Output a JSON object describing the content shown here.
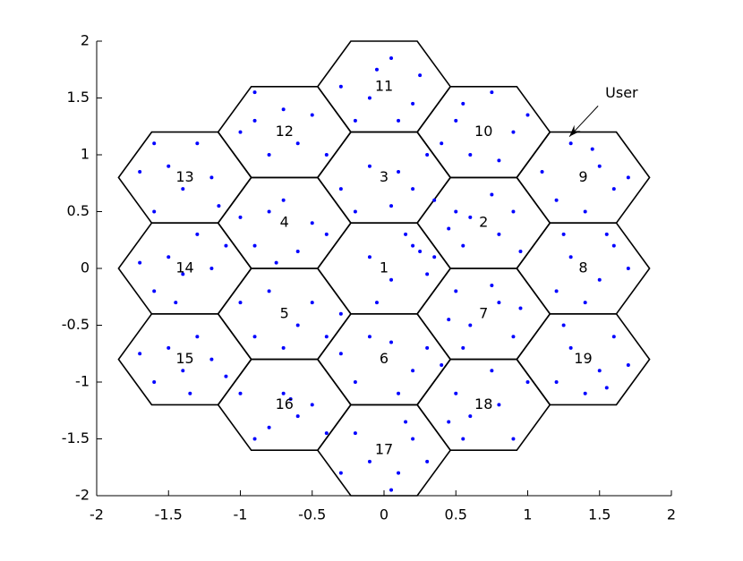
{
  "chart_data": {
    "type": "scatter",
    "xlim": [
      -2,
      2
    ],
    "ylim": [
      -2,
      2
    ],
    "xticks": [
      -2,
      -1.5,
      -1,
      -0.5,
      0,
      0.5,
      1,
      1.5,
      2
    ],
    "yticks": [
      -2,
      -1.5,
      -1,
      -0.5,
      0,
      0.5,
      1,
      1.5,
      2
    ],
    "cell_radius": 0.4619,
    "cells": [
      {
        "label": "1",
        "x": 0,
        "y": 0
      },
      {
        "label": "2",
        "x": 0.693,
        "y": 0.4
      },
      {
        "label": "3",
        "x": 0,
        "y": 0.8
      },
      {
        "label": "4",
        "x": -0.693,
        "y": 0.4
      },
      {
        "label": "5",
        "x": -0.693,
        "y": -0.4
      },
      {
        "label": "6",
        "x": 0,
        "y": -0.8
      },
      {
        "label": "7",
        "x": 0.693,
        "y": -0.4
      },
      {
        "label": "8",
        "x": 1.386,
        "y": 0
      },
      {
        "label": "9",
        "x": 1.386,
        "y": 0.8
      },
      {
        "label": "10",
        "x": 0.693,
        "y": 1.2
      },
      {
        "label": "11",
        "x": 0,
        "y": 1.6
      },
      {
        "label": "12",
        "x": -0.693,
        "y": 1.2
      },
      {
        "label": "13",
        "x": -1.386,
        "y": 0.8
      },
      {
        "label": "14",
        "x": -1.386,
        "y": 0
      },
      {
        "label": "15",
        "x": -1.386,
        "y": -0.8
      },
      {
        "label": "16",
        "x": -0.693,
        "y": -1.2
      },
      {
        "label": "17",
        "x": 0,
        "y": -1.6
      },
      {
        "label": "18",
        "x": 0.693,
        "y": -1.2
      },
      {
        "label": "19",
        "x": 1.386,
        "y": -0.8
      }
    ],
    "annotation": {
      "text": "User",
      "xy": [
        1.29,
        1.16
      ],
      "xytext": [
        1.49,
        1.43
      ]
    },
    "series": [
      {
        "color": "#0000ff",
        "x": [
          0.2,
          0.25,
          0.05,
          -0.1,
          0.3,
          0.15,
          -0.05,
          0.35,
          0.5,
          0.6,
          0.8,
          0.9,
          0.55,
          0.75,
          0.95,
          0.45,
          -0.1,
          0.2,
          0.05,
          -0.3,
          0.3,
          0.1,
          -0.2,
          0.35,
          -0.8,
          -0.7,
          -0.5,
          -0.9,
          -0.6,
          -0.4,
          -0.75,
          -1.0,
          -0.8,
          -0.5,
          -0.6,
          -0.9,
          -0.4,
          -0.7,
          -0.3,
          -1.0,
          -0.1,
          0.2,
          0.3,
          -0.2,
          0.1,
          0.4,
          -0.3,
          0.05,
          0.5,
          0.6,
          0.8,
          0.9,
          0.55,
          0.75,
          0.45,
          0.95,
          1.3,
          1.5,
          1.6,
          1.2,
          1.4,
          1.7,
          1.25,
          1.55,
          1.3,
          1.5,
          1.6,
          1.2,
          1.4,
          1.7,
          1.45,
          1.1,
          0.5,
          0.75,
          0.9,
          0.6,
          0.4,
          0.8,
          0.55,
          1.0,
          -0.1,
          0.05,
          0.2,
          -0.2,
          0.1,
          -0.3,
          0.25,
          -0.05,
          -0.9,
          -0.7,
          -0.5,
          -0.8,
          -0.6,
          -0.4,
          -0.9,
          -1.0,
          -1.6,
          -1.5,
          -1.4,
          -1.2,
          -1.3,
          -1.6,
          -1.7,
          -1.15,
          -1.5,
          -1.4,
          -1.3,
          -1.6,
          -1.2,
          -1.45,
          -1.7,
          -1.1,
          -1.5,
          -1.4,
          -1.3,
          -1.6,
          -1.2,
          -1.7,
          -1.35,
          -1.1,
          -0.7,
          -0.6,
          -0.5,
          -0.8,
          -0.65,
          -0.4,
          -0.9,
          -1.0,
          -0.1,
          0.1,
          0.2,
          -0.2,
          0.05,
          0.3,
          -0.3,
          0.15,
          0.5,
          0.6,
          0.8,
          0.9,
          0.55,
          0.75,
          1.0,
          0.45,
          1.3,
          1.5,
          1.6,
          1.2,
          1.4,
          1.7,
          1.25,
          1.55
        ],
        "y": [
          0.2,
          0.15,
          -0.1,
          0.1,
          -0.05,
          0.3,
          -0.3,
          0.1,
          0.5,
          0.45,
          0.3,
          0.5,
          0.2,
          0.65,
          0.15,
          0.35,
          0.9,
          0.7,
          0.55,
          0.7,
          1.0,
          0.85,
          0.5,
          0.6,
          0.5,
          0.6,
          0.4,
          0.2,
          0.15,
          0.3,
          0.05,
          0.45,
          -0.2,
          -0.3,
          -0.5,
          -0.6,
          -0.6,
          -0.7,
          -0.4,
          -0.3,
          -0.6,
          -0.9,
          -0.7,
          -1.0,
          -1.1,
          -0.85,
          -0.75,
          -0.65,
          -0.2,
          -0.5,
          -0.3,
          -0.6,
          -0.7,
          -0.15,
          -0.45,
          -0.35,
          0.1,
          -0.1,
          0.2,
          -0.2,
          -0.3,
          0.0,
          0.3,
          0.3,
          1.1,
          0.9,
          0.7,
          0.6,
          0.5,
          0.8,
          1.05,
          0.85,
          1.3,
          1.55,
          1.2,
          1.0,
          1.1,
          0.95,
          1.45,
          1.35,
          1.5,
          1.85,
          1.45,
          1.3,
          1.3,
          1.6,
          1.7,
          1.75,
          1.3,
          1.4,
          1.35,
          1.0,
          1.1,
          1.0,
          1.55,
          1.2,
          1.1,
          0.9,
          0.7,
          0.8,
          1.1,
          0.5,
          0.85,
          0.55,
          0.1,
          -0.05,
          0.3,
          -0.2,
          0.0,
          -0.3,
          0.05,
          0.2,
          -0.7,
          -0.9,
          -0.6,
          -1.0,
          -0.8,
          -0.75,
          -1.1,
          -0.95,
          -1.1,
          -1.3,
          -1.2,
          -1.4,
          -1.15,
          -1.45,
          -1.5,
          -1.1,
          -1.7,
          -1.8,
          -1.5,
          -1.45,
          -1.95,
          -1.7,
          -1.8,
          -1.35,
          -1.1,
          -1.3,
          -1.2,
          -1.5,
          -1.5,
          -0.9,
          -1.0,
          -1.35,
          -0.7,
          -0.9,
          -0.6,
          -1.0,
          -1.1,
          -0.85,
          -0.5,
          -1.05
        ]
      }
    ]
  }
}
